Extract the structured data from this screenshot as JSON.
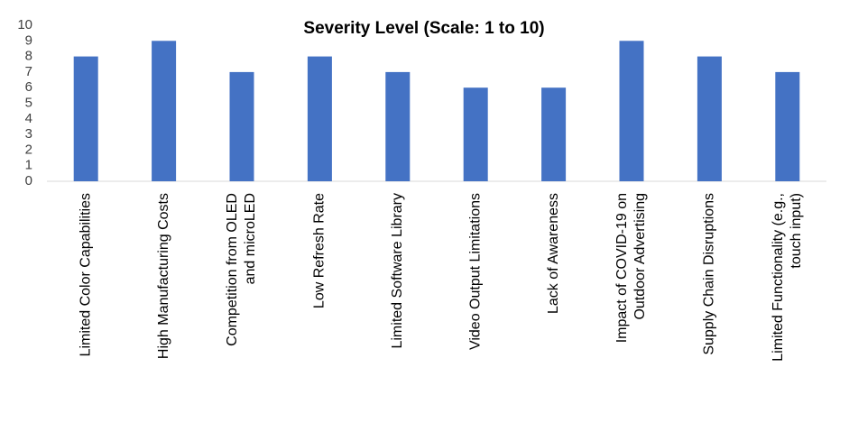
{
  "chart_data": {
    "type": "bar",
    "title": "Severity Level (Scale: 1 to 10)",
    "categories": [
      "Limited Color Capabilities",
      "High Manufacturing Costs",
      "Competition from OLED\nand microLED",
      "Low Refresh Rate",
      "Limited Software Library",
      "Video Output Limitations",
      "Lack of Awareness",
      "Impact of COVID-19 on\nOutdoor Advertising",
      "Supply Chain Disruptions",
      "Limited Functionality (e.g.,\ntouch input)"
    ],
    "values": [
      8,
      9,
      7,
      8,
      7,
      6,
      6,
      9,
      8,
      7
    ],
    "color": "#4472c4",
    "ylim": [
      0,
      10
    ],
    "yticks": [
      0,
      1,
      2,
      3,
      4,
      5,
      6,
      7,
      8,
      9,
      10
    ],
    "grid": false
  }
}
